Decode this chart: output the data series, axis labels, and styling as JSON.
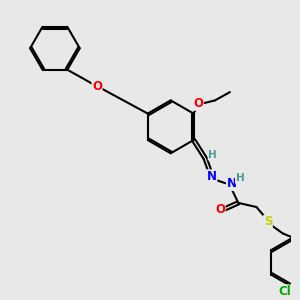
{
  "bg_color": "#e8e8e8",
  "bond_color": "#000000",
  "bond_width": 1.5,
  "atom_colors": {
    "O": "#ff0000",
    "N": "#0000ff",
    "S": "#cccc00",
    "Cl": "#00aa00",
    "C": "#000000",
    "H": "#4a9a9a"
  },
  "font_size": 8.5,
  "ring_r": 0.28
}
